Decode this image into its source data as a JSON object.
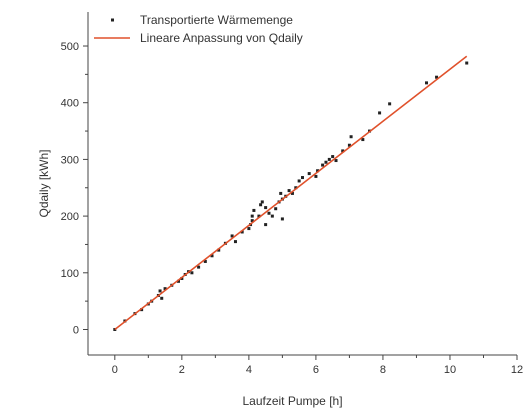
{
  "chart_data": {
    "type": "scatter",
    "xlabel": "Laufzeit Pumpe [h]",
    "ylabel": "Qdaily [kWh]",
    "xlim": [
      -0.8,
      12
    ],
    "ylim": [
      -45,
      560
    ],
    "xticks": [
      0,
      2,
      4,
      6,
      8,
      10,
      12
    ],
    "xtick_labels": [
      "0",
      "2",
      "4",
      "6",
      "8",
      "10",
      "12"
    ],
    "yticks": [
      0,
      100,
      200,
      300,
      400,
      500
    ],
    "ytick_labels": [
      "0",
      "100",
      "200",
      "300",
      "400",
      "500"
    ],
    "grid": false,
    "legend_position": "top-left",
    "series": [
      {
        "name": "Transportierte Wärmemenge",
        "kind": "scatter",
        "color": "#222222",
        "points": [
          [
            0,
            0
          ],
          [
            0.3,
            15
          ],
          [
            0.6,
            28
          ],
          [
            0.8,
            35
          ],
          [
            1.0,
            45
          ],
          [
            1.1,
            50
          ],
          [
            1.3,
            60
          ],
          [
            1.35,
            68
          ],
          [
            1.4,
            55
          ],
          [
            1.5,
            72
          ],
          [
            1.7,
            78
          ],
          [
            1.9,
            85
          ],
          [
            2.0,
            90
          ],
          [
            2.1,
            97
          ],
          [
            2.2,
            102
          ],
          [
            2.3,
            100
          ],
          [
            2.5,
            110
          ],
          [
            2.7,
            120
          ],
          [
            2.9,
            130
          ],
          [
            3.1,
            140
          ],
          [
            3.3,
            152
          ],
          [
            3.5,
            165
          ],
          [
            3.6,
            155
          ],
          [
            3.8,
            172
          ],
          [
            4.0,
            178
          ],
          [
            4.05,
            185
          ],
          [
            4.1,
            192
          ],
          [
            4.1,
            200
          ],
          [
            4.15,
            210
          ],
          [
            4.3,
            200
          ],
          [
            4.35,
            220
          ],
          [
            4.4,
            225
          ],
          [
            4.5,
            215
          ],
          [
            4.5,
            185
          ],
          [
            4.6,
            205
          ],
          [
            4.7,
            200
          ],
          [
            4.8,
            213
          ],
          [
            4.9,
            225
          ],
          [
            4.95,
            240
          ],
          [
            5.0,
            230
          ],
          [
            5.0,
            195
          ],
          [
            5.1,
            235
          ],
          [
            5.2,
            245
          ],
          [
            5.3,
            240
          ],
          [
            5.4,
            250
          ],
          [
            5.5,
            262
          ],
          [
            5.6,
            268
          ],
          [
            5.8,
            275
          ],
          [
            6.0,
            270
          ],
          [
            6.05,
            280
          ],
          [
            6.2,
            290
          ],
          [
            6.3,
            295
          ],
          [
            6.4,
            300
          ],
          [
            6.5,
            305
          ],
          [
            6.6,
            298
          ],
          [
            6.8,
            315
          ],
          [
            7.0,
            325
          ],
          [
            7.05,
            340
          ],
          [
            7.4,
            335
          ],
          [
            7.6,
            350
          ],
          [
            7.9,
            382
          ],
          [
            8.2,
            398
          ],
          [
            9.3,
            435
          ],
          [
            9.6,
            445
          ],
          [
            10.5,
            470
          ]
        ]
      },
      {
        "name": "Lineare Anpassung von Qdaily",
        "kind": "line",
        "color": "#e0512b",
        "points": [
          [
            0,
            0
          ],
          [
            10.5,
            482
          ]
        ]
      }
    ]
  }
}
